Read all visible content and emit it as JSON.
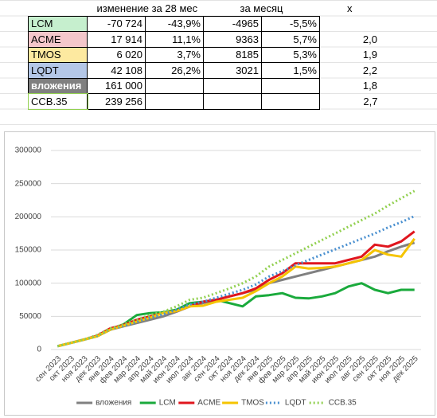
{
  "table": {
    "header": {
      "change": "изменение за 28 мес",
      "month": "за месяц",
      "x": "x"
    },
    "rows": [
      {
        "name": "LCM",
        "change": "-70 724",
        "change_pct": "-43,9%",
        "month": "-4965",
        "month_pct": "-5,5%"
      },
      {
        "name": "ACME",
        "change": "17 914",
        "change_pct": "11,1%",
        "month": "9363",
        "month_pct": "5,7%",
        "x": "2,0"
      },
      {
        "name": "TMOS",
        "change": "6 020",
        "change_pct": "3,7%",
        "month": "8185",
        "month_pct": "5,3%",
        "x": "1,9"
      },
      {
        "name": "LQDT",
        "change": "42 108",
        "change_pct": "26,2%",
        "month": "3021",
        "month_pct": "1,5%",
        "x": "2,2"
      },
      {
        "name": "вложения",
        "change": "161 000",
        "x": "1,8"
      },
      {
        "name": "CCB.35",
        "change": "239 256",
        "x": "2,7"
      }
    ]
  },
  "chart_data": {
    "type": "line",
    "categories": [
      "сен 2023",
      "окт 2023",
      "ноя 2023",
      "дек 2023",
      "янв 2024",
      "фев 2024",
      "мар 2024",
      "апр 2024",
      "май 2024",
      "июн 2024",
      "июл 2024",
      "авг 2024",
      "сен 2024",
      "окт 2024",
      "ноя 2024",
      "дек 2024",
      "янв 2025",
      "фев 2025",
      "мар 2025",
      "апр 2025",
      "май 2025",
      "июн 2025",
      "июл 2025",
      "авг 2025",
      "сен 2025",
      "окт 2025",
      "ноя 2025",
      "дек 2025"
    ],
    "ylim": [
      0,
      300000
    ],
    "yticks": [
      0,
      50000,
      100000,
      150000,
      200000,
      250000,
      300000
    ],
    "grid": true,
    "legend": "bottom",
    "series": [
      {
        "name": "вложения",
        "color": "#808080",
        "dashed": false,
        "values": [
          5000,
          10000,
          15000,
          20000,
          30000,
          35000,
          40000,
          45000,
          50000,
          57000,
          65000,
          70000,
          75000,
          80000,
          85000,
          90000,
          100000,
          105000,
          110000,
          115000,
          120000,
          125000,
          130000,
          135000,
          140000,
          148000,
          155000,
          161000
        ]
      },
      {
        "name": "LCM",
        "color": "#1aaa3c",
        "dashed": false,
        "values": [
          5000,
          10000,
          15000,
          20000,
          30000,
          38000,
          52000,
          55000,
          56000,
          60000,
          70000,
          72000,
          75000,
          70000,
          65000,
          80000,
          82000,
          85000,
          78000,
          77000,
          80000,
          85000,
          95000,
          100000,
          90000,
          85000,
          90000,
          90000
        ]
      },
      {
        "name": "ACME",
        "color": "#e0161e",
        "dashed": false,
        "values": [
          5000,
          10000,
          15000,
          21000,
          32000,
          37000,
          45000,
          50000,
          55000,
          58000,
          65000,
          72000,
          75000,
          80000,
          85000,
          92000,
          105000,
          115000,
          130000,
          130000,
          130000,
          130000,
          135000,
          140000,
          158000,
          155000,
          163000,
          178000
        ]
      },
      {
        "name": "TMOS",
        "color": "#f5c400",
        "dashed": false,
        "values": [
          5000,
          10000,
          15000,
          20000,
          30000,
          36000,
          42000,
          48000,
          55000,
          58000,
          65000,
          66000,
          72000,
          75000,
          78000,
          88000,
          100000,
          110000,
          125000,
          122000,
          123000,
          125000,
          130000,
          135000,
          150000,
          143000,
          140000,
          167000
        ]
      },
      {
        "name": "LQDT",
        "color": "#4a90d0",
        "dashed": true,
        "values": [
          5000,
          10000,
          15000,
          21000,
          31000,
          36000,
          42000,
          48000,
          53000,
          60000,
          68000,
          72000,
          78000,
          84000,
          90000,
          98000,
          110000,
          118000,
          127000,
          135000,
          143000,
          151000,
          159000,
          167000,
          175000,
          184000,
          192000,
          201000
        ]
      },
      {
        "name": "CCB.35",
        "color": "#92d050",
        "dashed": true,
        "values": [
          5000,
          10000,
          15000,
          22000,
          32000,
          38000,
          45000,
          52000,
          57000,
          65000,
          75000,
          78000,
          85000,
          92000,
          100000,
          110000,
          125000,
          135000,
          145000,
          155000,
          165000,
          175000,
          185000,
          195000,
          205000,
          217000,
          228000,
          239000
        ]
      }
    ]
  }
}
